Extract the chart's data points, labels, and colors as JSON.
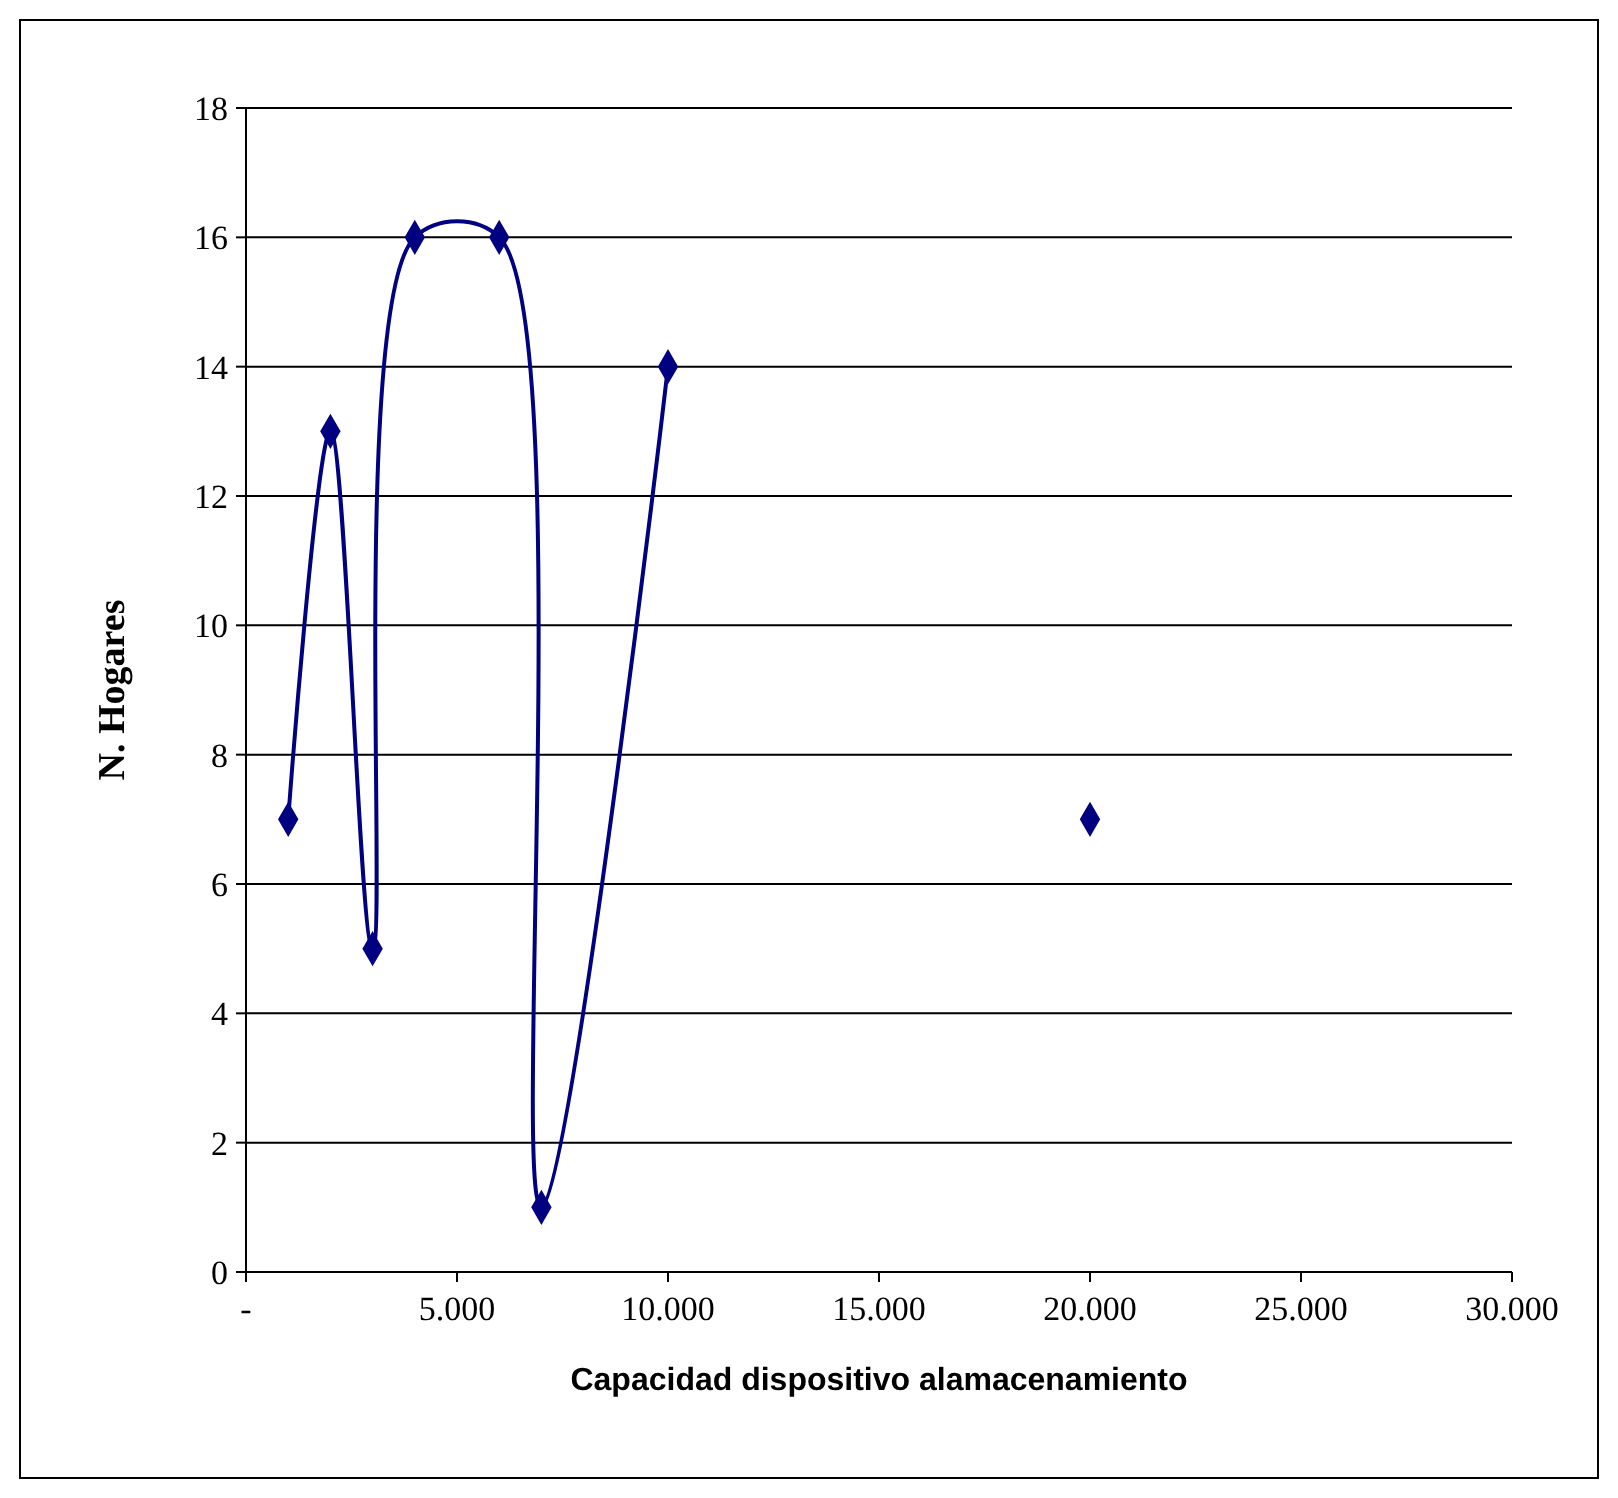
{
  "chart_data": {
    "type": "line",
    "xlabel": "Capacidad dispositivo alamacenamiento",
    "ylabel": "N. Hogares",
    "series": [
      {
        "color": "#000080",
        "x": [
          1000,
          2000,
          3000,
          4000,
          6000,
          7000,
          10000
        ],
        "values": [
          7,
          13,
          5,
          16,
          16,
          1,
          14
        ]
      },
      {
        "type": "scatter",
        "color": "#000080",
        "x": [
          20000
        ],
        "values": [
          7
        ]
      }
    ],
    "xlim": [
      0,
      30000
    ],
    "xticks": [
      {
        "value": 0,
        "label": "-"
      },
      {
        "value": 5000,
        "label": "5.000"
      },
      {
        "value": 10000,
        "label": "10.000"
      },
      {
        "value": 15000,
        "label": "15.000"
      },
      {
        "value": 20000,
        "label": "20.000"
      },
      {
        "value": 25000,
        "label": "25.000"
      },
      {
        "value": 30000,
        "label": "30.000"
      }
    ],
    "ylim": [
      0,
      18
    ],
    "yticks": [
      0,
      2,
      4,
      6,
      8,
      10,
      12,
      14,
      16,
      18
    ],
    "grid": "y",
    "marker": "diamond"
  }
}
